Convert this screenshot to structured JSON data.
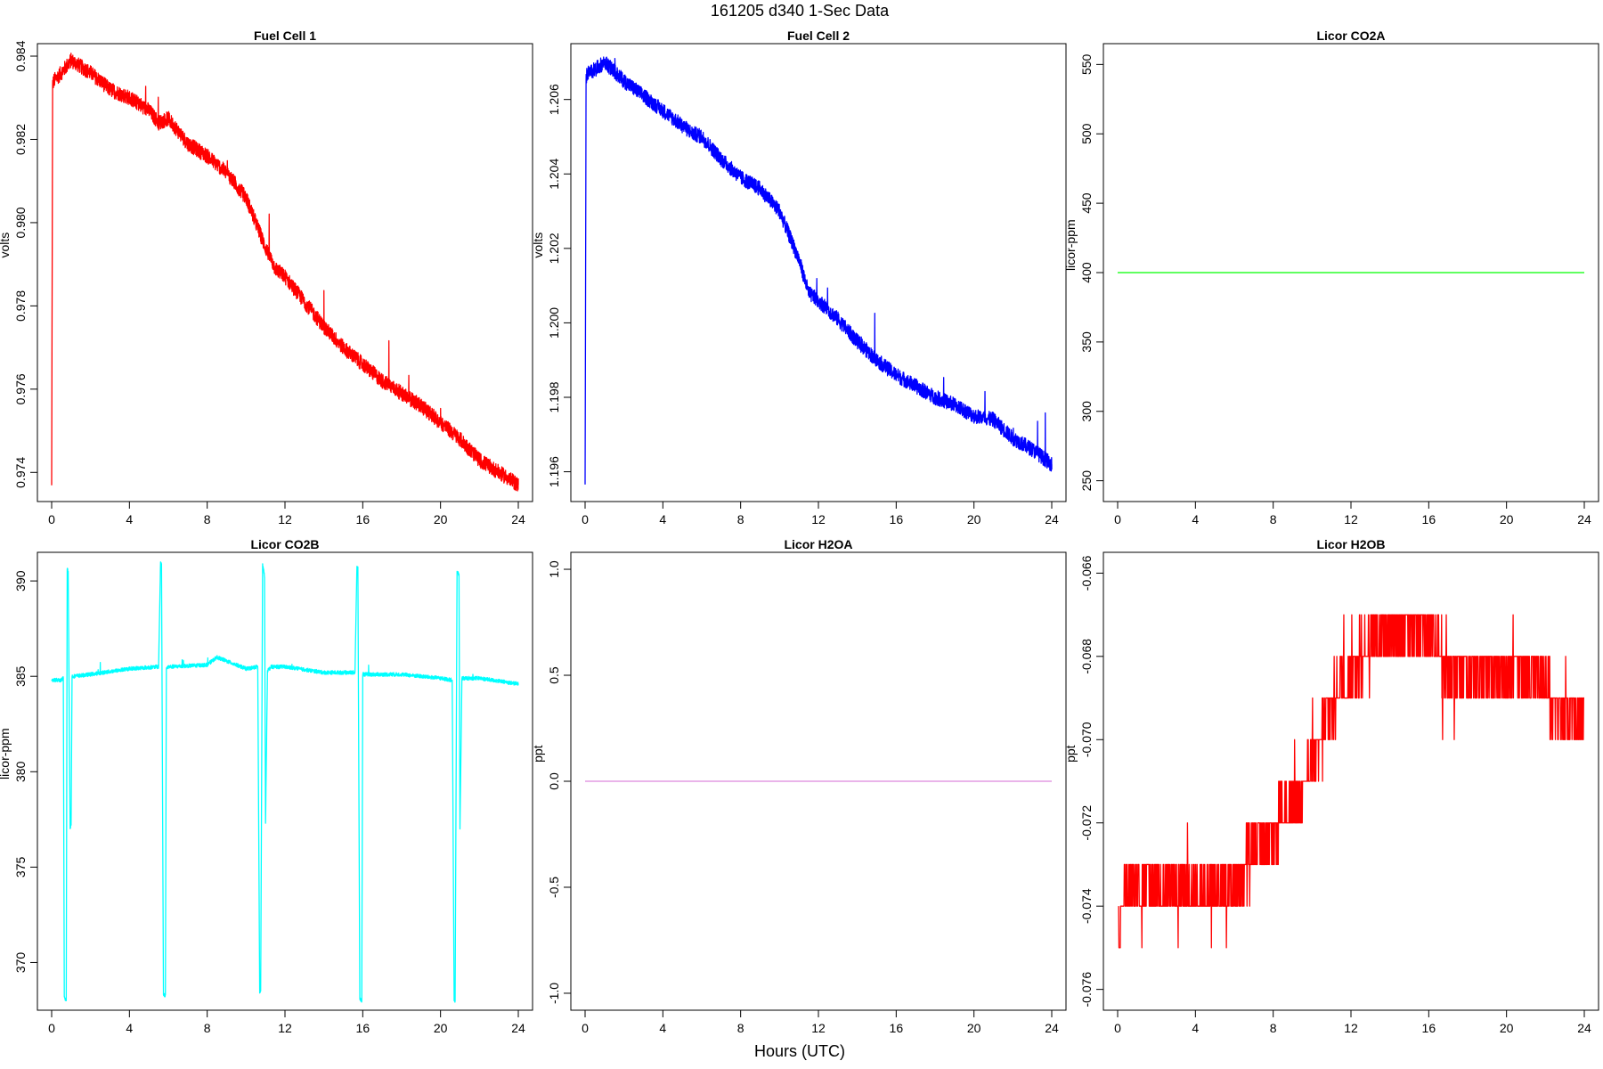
{
  "figure": {
    "title": "161205   d340   1-Sec Data",
    "xlabel": "Hours (UTC)"
  },
  "chart_data": [
    {
      "type": "line",
      "title": "Fuel Cell 1",
      "ylabel": "volts",
      "color": "#ff0000",
      "xlim": [
        0,
        24
      ],
      "ylim": [
        0.9733,
        0.9843
      ],
      "x_ticks": [
        0,
        4,
        8,
        12,
        16,
        20,
        24
      ],
      "y_ticks": [
        "0.974",
        "0.976",
        "0.978",
        "0.980",
        "0.982",
        "0.984"
      ],
      "x": [
        0,
        0.05,
        0.1,
        0.5,
        1,
        2,
        3,
        4,
        5,
        5.5,
        6,
        7,
        8,
        9,
        10,
        11,
        11.5,
        12,
        13,
        14,
        15,
        16,
        17,
        18,
        19,
        20,
        21,
        22,
        23,
        24
      ],
      "values": [
        0.9737,
        0.9833,
        0.9834,
        0.9836,
        0.9839,
        0.9836,
        0.9832,
        0.983,
        0.9827,
        0.9824,
        0.9825,
        0.9819,
        0.9816,
        0.9812,
        0.9806,
        0.9794,
        0.9789,
        0.9787,
        0.9781,
        0.9775,
        0.977,
        0.9766,
        0.9762,
        0.9759,
        0.9756,
        0.9752,
        0.9748,
        0.9743,
        0.974,
        0.9737
      ],
      "noise": 0.00018
    },
    {
      "type": "line",
      "title": "Fuel Cell 2",
      "ylabel": "volts",
      "color": "#0000ff",
      "xlim": [
        0,
        24
      ],
      "ylim": [
        1.1952,
        1.2075
      ],
      "x_ticks": [
        0,
        4,
        8,
        12,
        16,
        20,
        24
      ],
      "y_ticks": [
        "1.196",
        "1.198",
        "1.200",
        "1.202",
        "1.204",
        "1.206"
      ],
      "x": [
        0,
        0.05,
        0.1,
        0.5,
        1,
        2,
        3,
        4,
        5,
        5.5,
        6,
        7,
        8,
        9,
        10,
        11,
        11.5,
        12,
        13,
        14,
        15,
        16,
        17,
        18,
        19,
        20,
        21,
        22,
        23,
        24
      ],
      "values": [
        1.1957,
        1.2065,
        1.2067,
        1.2068,
        1.207,
        1.2065,
        1.2061,
        1.2057,
        1.2053,
        1.2051,
        1.205,
        1.2044,
        1.2039,
        1.2036,
        1.203,
        1.2017,
        1.2008,
        1.2006,
        1.2001,
        1.1995,
        1.199,
        1.1986,
        1.1983,
        1.198,
        1.1978,
        1.1975,
        1.1974,
        1.1969,
        1.1966,
        1.1962
      ],
      "noise": 0.0002
    },
    {
      "type": "line",
      "title": "Licor CO2A",
      "ylabel": "licor-ppm",
      "color": "#00ff00",
      "xlim": [
        0,
        24
      ],
      "ylim": [
        235,
        565
      ],
      "x_ticks": [
        0,
        4,
        8,
        12,
        16,
        20,
        24
      ],
      "y_ticks": [
        "250",
        "300",
        "350",
        "400",
        "450",
        "500",
        "550"
      ],
      "x": [
        0,
        24
      ],
      "values": [
        400,
        400
      ],
      "noise": 0
    },
    {
      "type": "line",
      "title": "Licor CO2B",
      "ylabel": "licor-ppm",
      "color": "#00ffff",
      "xlim": [
        0,
        24
      ],
      "ylim": [
        367.5,
        391.5
      ],
      "x_ticks": [
        0,
        4,
        8,
        12,
        16,
        20,
        24
      ],
      "y_ticks": [
        "370",
        "375",
        "380",
        "385",
        "390"
      ],
      "x": [
        0,
        0.5,
        0.6,
        0.65,
        0.75,
        0.8,
        0.85,
        0.95,
        1.0,
        1.05,
        1.1,
        2,
        4,
        5.5,
        5.6,
        5.65,
        5.75,
        5.85,
        5.9,
        6.0,
        6.1,
        8,
        8.5,
        9,
        10,
        10.6,
        10.7,
        10.75,
        10.85,
        10.95,
        11.0,
        11.1,
        11.2,
        11.3,
        12,
        14,
        15.6,
        15.7,
        15.75,
        15.85,
        15.95,
        16.0,
        16.1,
        18,
        20,
        20.6,
        20.7,
        20.75,
        20.85,
        20.95,
        21.0,
        21.1,
        22,
        24
      ],
      "values": [
        384.8,
        384.8,
        384.9,
        368.2,
        368.0,
        390.6,
        390.5,
        377.1,
        377.2,
        385.0,
        385.0,
        385.1,
        385.4,
        385.5,
        390.9,
        390.9,
        368.3,
        368.3,
        385.4,
        385.5,
        385.5,
        385.6,
        386.0,
        385.8,
        385.4,
        385.5,
        368.4,
        368.5,
        390.9,
        390.2,
        377.3,
        385.3,
        385.4,
        385.5,
        385.5,
        385.2,
        385.2,
        390.7,
        390.7,
        368.1,
        368.0,
        385.1,
        385.1,
        385.1,
        384.9,
        384.8,
        368.0,
        368.0,
        390.5,
        390.3,
        377.0,
        384.9,
        384.9,
        384.6
      ],
      "noise": 0.1
    },
    {
      "type": "line",
      "title": "Licor H2OA",
      "ylabel": "ppt",
      "color": "#dd88dd",
      "xlim": [
        0,
        24
      ],
      "ylim": [
        -1.08,
        1.08
      ],
      "x_ticks": [
        0,
        4,
        8,
        12,
        16,
        20,
        24
      ],
      "y_ticks": [
        "-1.0",
        "-0.5",
        "0.0",
        "0.5",
        "1.0"
      ],
      "x": [
        0,
        24
      ],
      "values": [
        0,
        0
      ],
      "noise": 0
    },
    {
      "type": "line",
      "title": "Licor H2OB",
      "ylabel": "ppt",
      "color": "#ff0000",
      "xlim": [
        0,
        24
      ],
      "ylim": [
        -0.0765,
        -0.0655
      ],
      "x_ticks": [
        0,
        4,
        8,
        12,
        16,
        20,
        24
      ],
      "y_ticks": [
        "-0.076",
        "-0.074",
        "-0.072",
        "-0.070",
        "-0.068",
        "-0.066"
      ],
      "x": [
        0.05,
        0.3,
        2.5,
        4.5,
        6.0,
        7.0,
        8.0,
        9.0,
        10.0,
        11.0,
        12.0,
        13.0,
        14.0,
        15.0,
        16.0,
        17.0,
        18.0,
        19.0,
        20.0,
        21.0,
        22.0,
        23.0,
        24.0
      ],
      "values": [
        -0.0745,
        -0.0735,
        -0.0735,
        -0.0737,
        -0.0735,
        -0.0727,
        -0.0722,
        -0.0715,
        -0.0708,
        -0.0692,
        -0.0682,
        -0.0678,
        -0.0673,
        -0.0672,
        -0.0675,
        -0.0682,
        -0.0684,
        -0.0684,
        -0.0684,
        -0.0683,
        -0.0688,
        -0.0693,
        -0.0694
      ],
      "quantum": 0.001
    }
  ]
}
